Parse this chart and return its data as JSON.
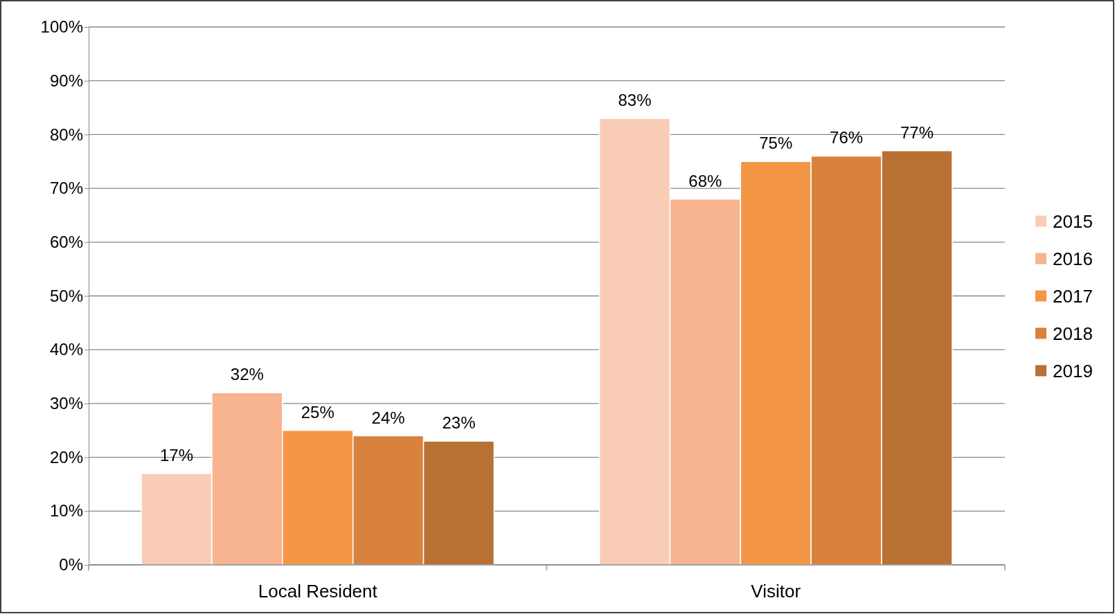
{
  "chart_data": {
    "type": "bar",
    "categories": [
      "Local Resident",
      "Visitor"
    ],
    "series": [
      {
        "name": "2015",
        "color": "#f9cdb5",
        "values": [
          17,
          83
        ],
        "value_labels": [
          "17%",
          "83%"
        ]
      },
      {
        "name": "2016",
        "color": "#f7b48f",
        "values": [
          32,
          68
        ],
        "value_labels": [
          "32%",
          "68%"
        ]
      },
      {
        "name": "2017",
        "color": "#f39646",
        "values": [
          25,
          75
        ],
        "value_labels": [
          "25%",
          "75%"
        ]
      },
      {
        "name": "2018",
        "color": "#d9823e",
        "values": [
          24,
          76
        ],
        "value_labels": [
          "24%",
          "76%"
        ]
      },
      {
        "name": "2019",
        "color": "#b87033",
        "values": [
          23,
          77
        ],
        "value_labels": [
          "23%",
          "77%"
        ]
      }
    ],
    "ylim": [
      0,
      100
    ],
    "yticks": [
      {
        "value": 0,
        "label": "0%"
      },
      {
        "value": 10,
        "label": "10%"
      },
      {
        "value": 20,
        "label": "20%"
      },
      {
        "value": 30,
        "label": "30%"
      },
      {
        "value": 40,
        "label": "40%"
      },
      {
        "value": 50,
        "label": "50%"
      },
      {
        "value": 60,
        "label": "60%"
      },
      {
        "value": 70,
        "label": "70%"
      },
      {
        "value": 80,
        "label": "80%"
      },
      {
        "value": 90,
        "label": "90%"
      },
      {
        "value": 100,
        "label": "100%"
      }
    ],
    "grid": "y",
    "legend": "right"
  }
}
